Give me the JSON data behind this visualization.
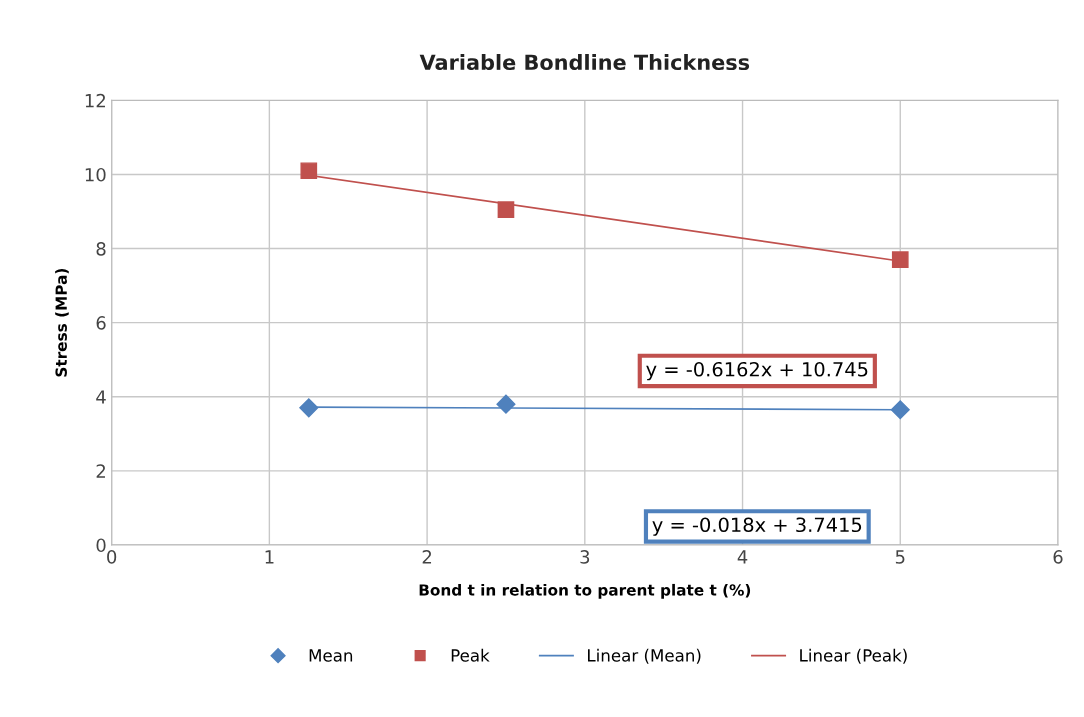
{
  "chart_data": {
    "type": "scatter",
    "title": "Variable Bondline Thickness",
    "xlabel": "Bond t in relation to parent plate t (%)",
    "ylabel": "Stress (MPa)",
    "xlim": [
      0,
      6
    ],
    "xticks": [
      0,
      1,
      2,
      3,
      4,
      5,
      6
    ],
    "ylim": [
      0,
      12
    ],
    "yticks": [
      0,
      2,
      4,
      6,
      8,
      10,
      12
    ],
    "grid": true,
    "legend": "bottom",
    "series": [
      {
        "name": "Mean",
        "marker": "diamond",
        "color": "#4f81bd",
        "x": [
          1.25,
          2.5,
          5
        ],
        "values": [
          3.7,
          3.8,
          3.65
        ]
      },
      {
        "name": "Peak",
        "marker": "square",
        "color": "#c0504d",
        "x": [
          1.25,
          2.5,
          5
        ],
        "values": [
          10.1,
          9.05,
          7.7
        ]
      },
      {
        "name": "Linear (Mean)",
        "type": "line",
        "marker": "none",
        "color": "#4f81bd",
        "x": [
          1.25,
          5
        ],
        "values": [
          3.72,
          3.65
        ]
      },
      {
        "name": "Linear (Peak)",
        "type": "line",
        "marker": "none",
        "color": "#c0504d",
        "x": [
          1.25,
          5
        ],
        "values": [
          9.98,
          7.66
        ]
      }
    ],
    "annotations": [
      "y = -0.018x + 3.7415",
      "y = -0.6162x + 10.745"
    ]
  }
}
